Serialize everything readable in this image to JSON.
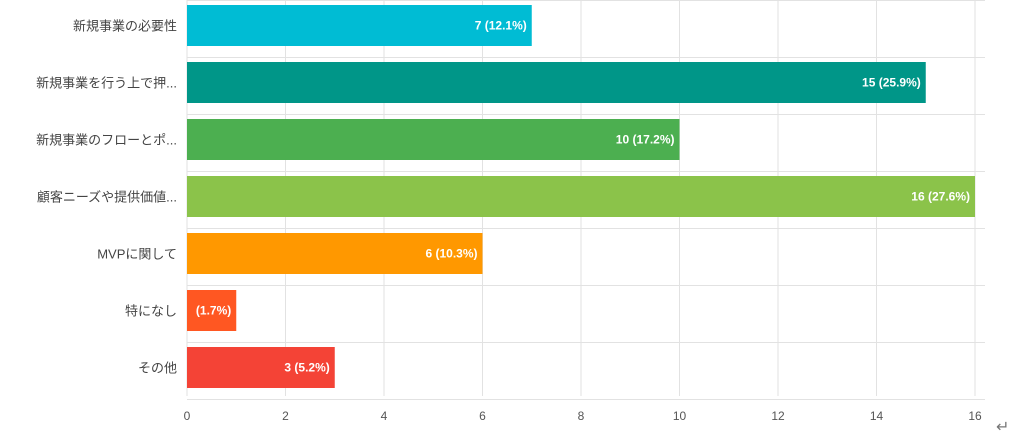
{
  "chart_data": {
    "type": "bar",
    "orientation": "horizontal",
    "categories": [
      "新規事業の必要性",
      "新規事業を行う上で押...",
      "新規事業のフローとポ...",
      "顧客ニーズや提供価値...",
      "MVPに関して",
      "特になし",
      "その他"
    ],
    "values": [
      7,
      15,
      10,
      16,
      6,
      1,
      3
    ],
    "data_labels": [
      "7 (12.1%)",
      "15 (25.9%)",
      "10 (17.2%)",
      "16 (27.6%)",
      "6 (10.3%)",
      "(1.7%)",
      "3 (5.2%)"
    ],
    "colors": [
      "#00bcd4",
      "#009688",
      "#4caf50",
      "#8bc34a",
      "#ff9800",
      "#ff5722",
      "#f44336"
    ],
    "xlim": [
      0,
      16
    ],
    "xticks": [
      "0",
      "2",
      "4",
      "6",
      "8",
      "10",
      "12",
      "14",
      "16"
    ],
    "grid": true,
    "title": "",
    "xlabel": "",
    "ylabel": ""
  },
  "return_mark": "↵"
}
